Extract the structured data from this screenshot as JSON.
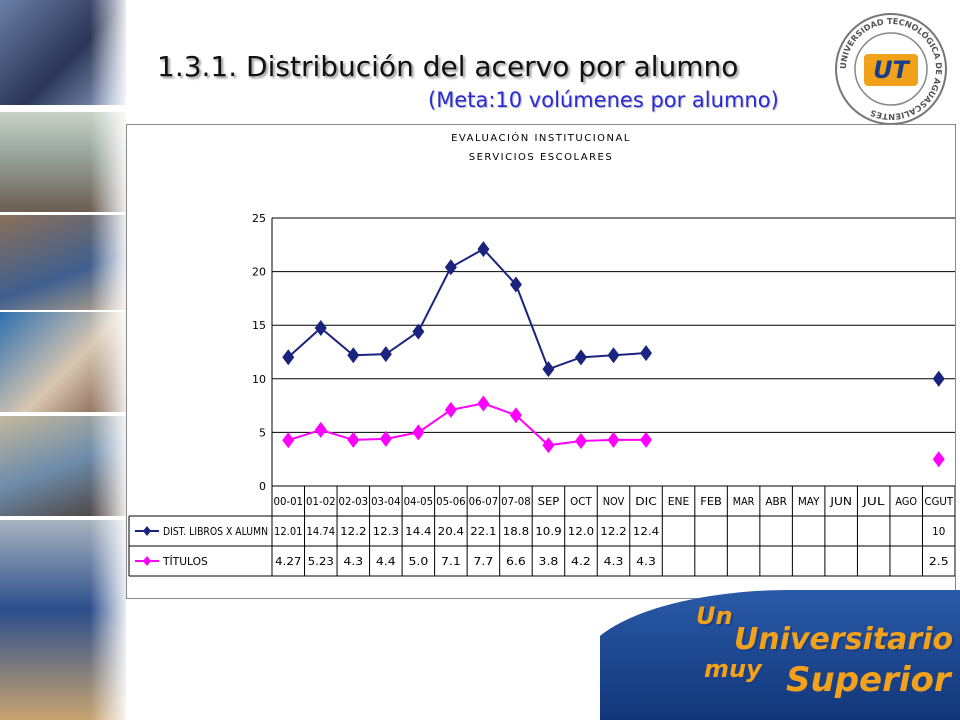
{
  "slide": {
    "title": "1.3.1. Distribución del acervo por alumno",
    "subtitle": "(Meta:10 volúmenes por alumno)"
  },
  "logo": {
    "text": "UNIVERSIDAD TECNOLÓGICA DE AGUASCALIENTES",
    "monogram": "UT"
  },
  "slogan": {
    "line1": "Un",
    "line2": "Universitario",
    "line3": "muy",
    "line4": "Superior"
  },
  "colors": {
    "series1": "#1a237e",
    "series2": "#ff00ff",
    "grid": "#000000",
    "slogan": "#f2a21a",
    "slogan_bg": "#1a3f8a"
  },
  "chart_data": {
    "type": "line",
    "title": "EVALUACIÓN INSTITUCIONAL",
    "subtitle": "SERVICIOS ESCOLARES",
    "categories": [
      "00-01",
      "01-02",
      "02-03",
      "03-04",
      "04-05",
      "05-06",
      "06-07",
      "07-08",
      "SEP",
      "OCT",
      "NOV",
      "DIC",
      "ENE",
      "FEB",
      "MAR",
      "ABR",
      "MAY",
      "JUN",
      "JUL",
      "AGO",
      "CGUT"
    ],
    "series": [
      {
        "name": "DIST. LIBROS X ALUMN",
        "values": [
          12.01,
          14.74,
          12.2,
          12.3,
          14.4,
          20.4,
          22.1,
          18.8,
          10.9,
          12.0,
          12.2,
          12.4,
          null,
          null,
          null,
          null,
          null,
          null,
          null,
          null,
          10
        ],
        "labels": [
          "12.01",
          "14.74",
          "12.2",
          "12.3",
          "14.4",
          "20.4",
          "22.1",
          "18.8",
          "10.9",
          "12.0",
          "12.2",
          "12.4",
          "",
          "",
          "",
          "",
          "",
          "",
          "",
          "",
          "10"
        ]
      },
      {
        "name": "TÍTULOS",
        "values": [
          4.27,
          5.23,
          4.3,
          4.4,
          5.0,
          7.1,
          7.7,
          6.6,
          3.8,
          4.2,
          4.3,
          4.3,
          null,
          null,
          null,
          null,
          null,
          null,
          null,
          null,
          2.5
        ],
        "labels": [
          "4.27",
          "5.23",
          "4.3",
          "4.4",
          "5.0",
          "7.1",
          "7.7",
          "6.6",
          "3.8",
          "4.2",
          "4.3",
          "4.3",
          "",
          "",
          "",
          "",
          "",
          "",
          "",
          "",
          "2.5"
        ]
      }
    ],
    "ylim": [
      0,
      25
    ],
    "yticks": [
      "0",
      "5",
      "10",
      "15",
      "20",
      "25"
    ],
    "grid": true,
    "legend": "data-table"
  }
}
